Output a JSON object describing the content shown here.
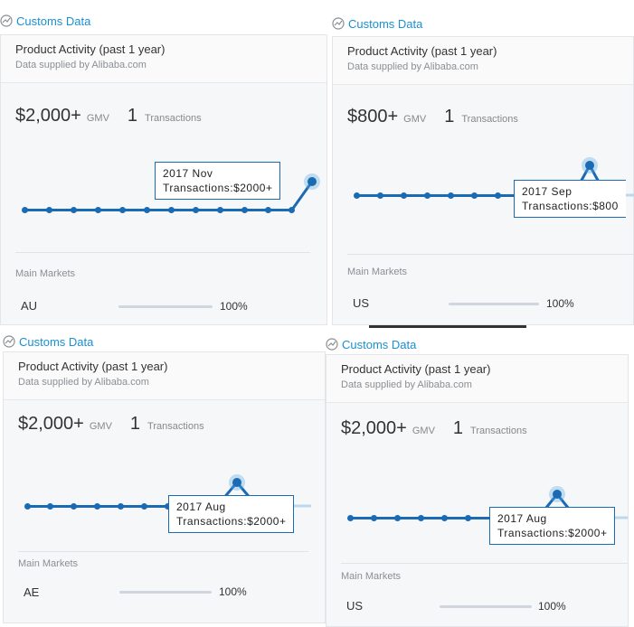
{
  "panels": [
    {
      "header": "Customs Data",
      "title": "Product Activity (past 1 year)",
      "subtitle": "Data supplied by Alibaba.com",
      "gmv": "$2,000+",
      "gmv_unit": "GMV",
      "transactions_count": "1",
      "transactions_label": "Transactions",
      "tooltip_date": "2017 Nov",
      "tooltip_value": "Transactions:$2000+",
      "main_markets_label": "Main Markets",
      "market": "AU",
      "market_pct": "100%"
    },
    {
      "header": "Customs Data",
      "title": "Product Activity (past 1 year)",
      "subtitle": "Data supplied by Alibaba.com",
      "gmv": "$800+",
      "gmv_unit": "GMV",
      "transactions_count": "1",
      "transactions_label": "Transactions",
      "tooltip_date": "2017 Sep",
      "tooltip_value": "Transactions:$800",
      "main_markets_label": "Main Markets",
      "market": "US",
      "market_pct": "100%"
    },
    {
      "header": "Customs Data",
      "title": "Product Activity (past 1 year)",
      "subtitle": "Data supplied by Alibaba.com",
      "gmv": "$2,000+",
      "gmv_unit": "GMV",
      "transactions_count": "1",
      "transactions_label": "Transactions",
      "tooltip_date": "2017 Aug",
      "tooltip_value": "Transactions:$2000+",
      "main_markets_label": "Main Markets",
      "market": "AE",
      "market_pct": "100%"
    },
    {
      "header": "Customs Data",
      "title": "Product Activity (past 1 year)",
      "subtitle": "Data supplied by Alibaba.com",
      "gmv": "$2,000+",
      "gmv_unit": "GMV",
      "transactions_count": "1",
      "transactions_label": "Transactions",
      "tooltip_date": "2017 Aug",
      "tooltip_value": "Transactions:$2000+",
      "main_markets_label": "Main Markets",
      "market": "US",
      "market_pct": "100%"
    }
  ],
  "icons": {
    "header": "chart-trend-icon"
  },
  "colors": {
    "accent": "#1a8fd0",
    "line": "#1a6bb3"
  }
}
